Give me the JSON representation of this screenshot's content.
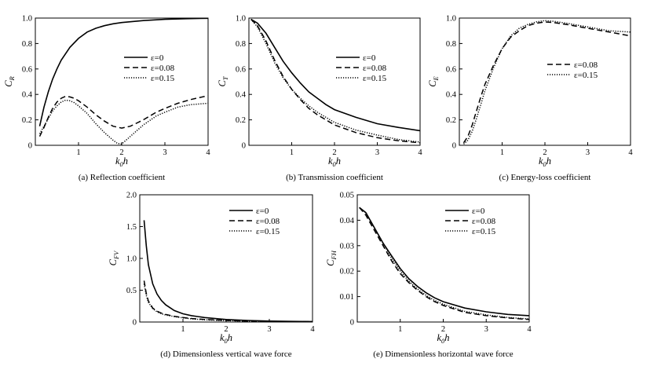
{
  "chart_data": [
    {
      "type": "line",
      "caption": "(a) Reflection coefficient",
      "xlabel": {
        "main": "k",
        "sub": "0",
        "tail": "h"
      },
      "ylabel": {
        "main": "C",
        "sub": "R"
      },
      "xlim": [
        0,
        4
      ],
      "ylim": [
        0,
        1
      ],
      "xticks": [
        "1",
        "2",
        "3",
        "4"
      ],
      "yticks": [
        "0",
        "0.2",
        "0.4",
        "0.6",
        "0.8",
        "1.0"
      ],
      "legend_position": "center-right",
      "series": [
        {
          "name": "ε=0",
          "style": "solid",
          "x": [
            0.1,
            0.2,
            0.3,
            0.4,
            0.5,
            0.6,
            0.8,
            1.0,
            1.2,
            1.4,
            1.6,
            1.8,
            2.0,
            2.5,
            3.0,
            3.5,
            4.0
          ],
          "y": [
            0.15,
            0.3,
            0.42,
            0.52,
            0.6,
            0.67,
            0.77,
            0.84,
            0.89,
            0.92,
            0.94,
            0.955,
            0.965,
            0.98,
            0.99,
            0.995,
            0.998
          ]
        },
        {
          "name": "ε=0.08",
          "style": "dashed",
          "x": [
            0.1,
            0.2,
            0.3,
            0.4,
            0.5,
            0.6,
            0.7,
            0.8,
            0.9,
            1.0,
            1.2,
            1.4,
            1.6,
            1.8,
            2.0,
            2.2,
            2.5,
            2.8,
            3.0,
            3.3,
            3.6,
            4.0
          ],
          "y": [
            0.07,
            0.14,
            0.22,
            0.29,
            0.34,
            0.37,
            0.385,
            0.38,
            0.37,
            0.35,
            0.3,
            0.24,
            0.19,
            0.15,
            0.135,
            0.15,
            0.2,
            0.26,
            0.29,
            0.33,
            0.36,
            0.39
          ]
        },
        {
          "name": "ε=0.15",
          "style": "dotted",
          "x": [
            0.1,
            0.2,
            0.3,
            0.4,
            0.5,
            0.6,
            0.7,
            0.8,
            0.9,
            1.0,
            1.2,
            1.4,
            1.6,
            1.8,
            1.9,
            2.0,
            2.1,
            2.3,
            2.5,
            2.8,
            3.0,
            3.3,
            3.6,
            4.0
          ],
          "y": [
            0.09,
            0.15,
            0.21,
            0.27,
            0.31,
            0.34,
            0.355,
            0.35,
            0.335,
            0.31,
            0.25,
            0.17,
            0.1,
            0.04,
            0.015,
            0.01,
            0.04,
            0.1,
            0.16,
            0.23,
            0.26,
            0.3,
            0.32,
            0.33
          ]
        }
      ]
    },
    {
      "type": "line",
      "caption": "(b) Transmission coefficient",
      "xlabel": {
        "main": "k",
        "sub": "0",
        "tail": "h"
      },
      "ylabel": {
        "main": "C",
        "sub": "T"
      },
      "xlim": [
        0,
        4
      ],
      "ylim": [
        0,
        1
      ],
      "xticks": [
        "1",
        "2",
        "3",
        "4"
      ],
      "yticks": [
        "0",
        "0.2",
        "0.4",
        "0.6",
        "0.8",
        "1.0"
      ],
      "legend_position": "center-right",
      "series": [
        {
          "name": "ε=0",
          "style": "solid",
          "x": [
            0.05,
            0.2,
            0.4,
            0.6,
            0.8,
            1.0,
            1.2,
            1.4,
            1.6,
            1.8,
            2.0,
            2.5,
            3.0,
            3.5,
            4.0
          ],
          "y": [
            0.99,
            0.96,
            0.88,
            0.77,
            0.66,
            0.57,
            0.49,
            0.42,
            0.37,
            0.32,
            0.28,
            0.22,
            0.17,
            0.14,
            0.115
          ]
        },
        {
          "name": "ε=0.08",
          "style": "dashed",
          "x": [
            0.05,
            0.2,
            0.4,
            0.6,
            0.8,
            1.0,
            1.2,
            1.4,
            1.6,
            1.8,
            2.0,
            2.5,
            3.0,
            3.5,
            4.0
          ],
          "y": [
            0.99,
            0.94,
            0.82,
            0.67,
            0.54,
            0.44,
            0.36,
            0.29,
            0.24,
            0.2,
            0.16,
            0.1,
            0.06,
            0.035,
            0.02
          ]
        },
        {
          "name": "ε=0.15",
          "style": "dotted",
          "x": [
            0.05,
            0.2,
            0.4,
            0.6,
            0.8,
            1.0,
            1.2,
            1.4,
            1.6,
            1.8,
            2.0,
            2.5,
            3.0,
            3.5,
            4.0
          ],
          "y": [
            0.99,
            0.93,
            0.8,
            0.65,
            0.53,
            0.44,
            0.37,
            0.31,
            0.26,
            0.22,
            0.18,
            0.12,
            0.08,
            0.045,
            0.025
          ]
        }
      ]
    },
    {
      "type": "line",
      "caption": "(c) Energy-loss coefficient",
      "xlabel": {
        "main": "k",
        "sub": "0",
        "tail": "h"
      },
      "ylabel": {
        "main": "C",
        "sub": "E"
      },
      "xlim": [
        0,
        4
      ],
      "ylim": [
        0,
        1
      ],
      "xticks": [
        "1",
        "2",
        "3",
        "4"
      ],
      "yticks": [
        "0",
        "0.2",
        "0.4",
        "0.6",
        "0.8",
        "1.0"
      ],
      "legend_position": "center-right",
      "series": [
        {
          "name": "ε=0.08",
          "style": "dashed",
          "x": [
            0.1,
            0.2,
            0.3,
            0.4,
            0.5,
            0.6,
            0.8,
            1.0,
            1.2,
            1.4,
            1.6,
            1.8,
            2.0,
            2.2,
            2.5,
            3.0,
            3.5,
            4.0
          ],
          "y": [
            0.02,
            0.07,
            0.16,
            0.27,
            0.38,
            0.48,
            0.63,
            0.76,
            0.85,
            0.9,
            0.94,
            0.96,
            0.97,
            0.965,
            0.95,
            0.92,
            0.89,
            0.86
          ]
        },
        {
          "name": "ε=0.15",
          "style": "dotted",
          "x": [
            0.1,
            0.2,
            0.3,
            0.4,
            0.5,
            0.6,
            0.8,
            1.0,
            1.2,
            1.4,
            1.6,
            1.8,
            2.0,
            2.2,
            2.5,
            3.0,
            3.5,
            4.0
          ],
          "y": [
            0.01,
            0.04,
            0.11,
            0.21,
            0.32,
            0.43,
            0.61,
            0.76,
            0.86,
            0.92,
            0.95,
            0.97,
            0.98,
            0.975,
            0.96,
            0.93,
            0.9,
            0.89
          ]
        }
      ]
    },
    {
      "type": "line",
      "caption": "(d) Dimensionless vertical wave force",
      "xlabel": {
        "main": "k",
        "sub": "0",
        "tail": "h"
      },
      "ylabel": {
        "main": "C",
        "sub": "FV"
      },
      "xlim": [
        0,
        4
      ],
      "ylim": [
        0,
        2
      ],
      "xticks": [
        "1",
        "2",
        "3",
        "4"
      ],
      "yticks": [
        "0",
        "0.5",
        "1.0",
        "1.5",
        "2.0"
      ],
      "legend_position": "top-right",
      "series": [
        {
          "name": "ε=0",
          "style": "solid",
          "x": [
            0.1,
            0.15,
            0.2,
            0.3,
            0.4,
            0.5,
            0.6,
            0.8,
            1.0,
            1.2,
            1.5,
            2.0,
            2.5,
            3.0,
            3.5,
            4.0
          ],
          "y": [
            1.6,
            1.2,
            0.9,
            0.6,
            0.44,
            0.34,
            0.27,
            0.18,
            0.13,
            0.1,
            0.07,
            0.04,
            0.025,
            0.015,
            0.01,
            0.008
          ]
        },
        {
          "name": "ε=0.08",
          "style": "dashed",
          "x": [
            0.1,
            0.15,
            0.2,
            0.3,
            0.4,
            0.5,
            0.6,
            0.8,
            1.0,
            1.2,
            1.5,
            2.0,
            2.5,
            3.0,
            3.5,
            4.0
          ],
          "y": [
            0.65,
            0.45,
            0.33,
            0.22,
            0.17,
            0.14,
            0.12,
            0.09,
            0.07,
            0.055,
            0.04,
            0.025,
            0.015,
            0.01,
            0.008,
            0.006
          ]
        },
        {
          "name": "ε=0.15",
          "style": "dotted",
          "x": [
            0.1,
            0.15,
            0.2,
            0.3,
            0.4,
            0.5,
            0.6,
            0.8,
            1.0,
            1.2,
            1.5,
            2.0,
            2.5,
            3.0,
            3.5,
            4.0
          ],
          "y": [
            0.6,
            0.42,
            0.31,
            0.21,
            0.16,
            0.13,
            0.11,
            0.085,
            0.065,
            0.05,
            0.035,
            0.022,
            0.014,
            0.009,
            0.007,
            0.005
          ]
        }
      ]
    },
    {
      "type": "line",
      "caption": "(e) Dimensionless horizontal wave force",
      "xlabel": {
        "main": "k",
        "sub": "0",
        "tail": "h"
      },
      "ylabel": {
        "main": "C",
        "sub": "FH"
      },
      "xlim": [
        0,
        4
      ],
      "ylim": [
        0,
        0.05
      ],
      "xticks": [
        "1",
        "2",
        "3",
        "4"
      ],
      "yticks": [
        "0",
        "0.01",
        "0.02",
        "0.03",
        "0.04",
        "0.05"
      ],
      "legend_position": "top-right",
      "series": [
        {
          "name": "ε=0",
          "style": "solid",
          "x": [
            0.05,
            0.2,
            0.4,
            0.6,
            0.8,
            1.0,
            1.2,
            1.4,
            1.6,
            1.8,
            2.0,
            2.5,
            3.0,
            3.5,
            4.0
          ],
          "y": [
            0.045,
            0.043,
            0.037,
            0.031,
            0.026,
            0.021,
            0.017,
            0.014,
            0.0115,
            0.0095,
            0.008,
            0.0055,
            0.004,
            0.003,
            0.0025
          ]
        },
        {
          "name": "ε=0.08",
          "style": "dashed",
          "x": [
            0.05,
            0.2,
            0.4,
            0.6,
            0.8,
            1.0,
            1.2,
            1.4,
            1.6,
            1.8,
            2.0,
            2.5,
            3.0,
            3.5,
            4.0
          ],
          "y": [
            0.045,
            0.042,
            0.036,
            0.03,
            0.024,
            0.019,
            0.0155,
            0.0125,
            0.01,
            0.008,
            0.0065,
            0.0038,
            0.0025,
            0.0016,
            0.001
          ]
        },
        {
          "name": "ε=0.15",
          "style": "dotted",
          "x": [
            0.05,
            0.2,
            0.4,
            0.6,
            0.8,
            1.0,
            1.2,
            1.4,
            1.6,
            1.8,
            2.0,
            2.5,
            3.0,
            3.5,
            4.0
          ],
          "y": [
            0.045,
            0.043,
            0.037,
            0.031,
            0.025,
            0.02,
            0.016,
            0.013,
            0.0105,
            0.0085,
            0.007,
            0.0042,
            0.0028,
            0.0018,
            0.0012
          ]
        }
      ]
    }
  ]
}
